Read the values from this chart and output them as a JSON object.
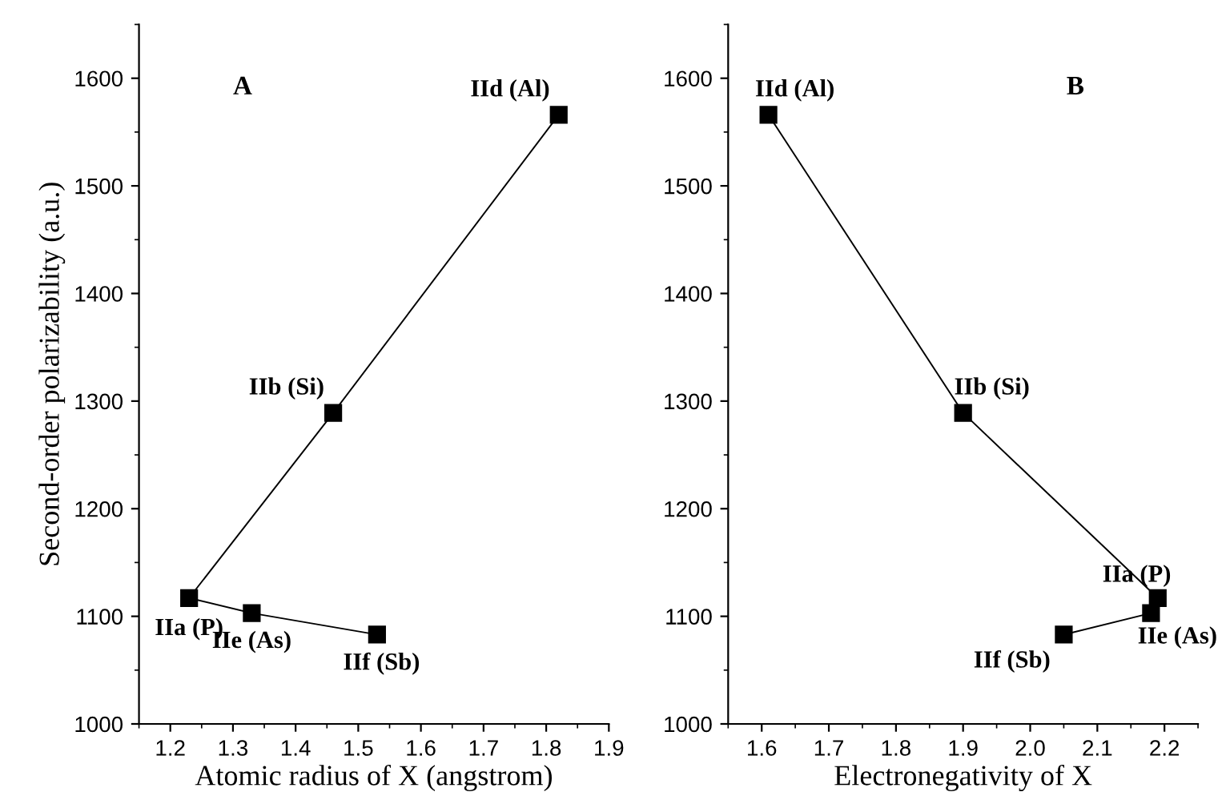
{
  "chart_data": [
    {
      "type": "line",
      "xlabel": "Atomic radius of X (angstrom)",
      "ylabel": "Second-order polarizability (a.u.)",
      "marker": "square",
      "line_style": "solid",
      "grid": false,
      "x": [
        1.82,
        1.46,
        1.23,
        1.33,
        1.53
      ],
      "series": [
        {
          "color": "#000000",
          "values": [
            1566,
            1289,
            1117,
            1103,
            1083
          ]
        }
      ],
      "xlim": [
        1.15,
        1.9
      ],
      "xticks": [
        1.2,
        1.3,
        1.4,
        1.5,
        1.6,
        1.7,
        1.8,
        1.9
      ],
      "ylim": [
        1000,
        1650
      ],
      "yticks": [
        1000,
        1100,
        1200,
        1300,
        1400,
        1500,
        1600
      ],
      "annotations": [
        "A",
        {
          "text": "IId (Al)",
          "x": 1.82,
          "y": 1566
        },
        {
          "text": "IIb (Si)",
          "x": 1.46,
          "y": 1289
        },
        {
          "text": "IIa (P)",
          "x": 1.23,
          "y": 1117
        },
        {
          "text": "IIe (As)",
          "x": 1.33,
          "y": 1103
        },
        {
          "text": "IIf (Sb)",
          "x": 1.53,
          "y": 1083
        }
      ]
    },
    {
      "type": "line",
      "xlabel": "Electronegativity of X",
      "marker": "square",
      "line_style": "solid",
      "grid": false,
      "x": [
        1.61,
        1.9,
        2.19,
        2.18,
        2.05
      ],
      "series": [
        {
          "color": "#000000",
          "values": [
            1566,
            1289,
            1117,
            1103,
            1083
          ]
        }
      ],
      "xlim": [
        1.55,
        2.25
      ],
      "xticks": [
        1.6,
        1.7,
        1.8,
        1.9,
        {
          "value": 2.0,
          "label": "2.0"
        },
        2.1,
        2.2
      ],
      "ylim": [
        1000,
        1650
      ],
      "yticks": [
        1000,
        1100,
        1200,
        1300,
        1400,
        1500,
        1600
      ],
      "annotations": [
        "B",
        {
          "text": "IId (Al)",
          "x": 1.61,
          "y": 1566
        },
        {
          "text": "IIb (Si)",
          "x": 1.9,
          "y": 1289
        },
        {
          "text": "IIa (P)",
          "x": 2.19,
          "y": 1117
        },
        {
          "text": "IIe (As)",
          "x": 2.18,
          "y": 1103
        },
        {
          "text": "IIf (Sb)",
          "x": 2.05,
          "y": 1083
        }
      ]
    }
  ]
}
